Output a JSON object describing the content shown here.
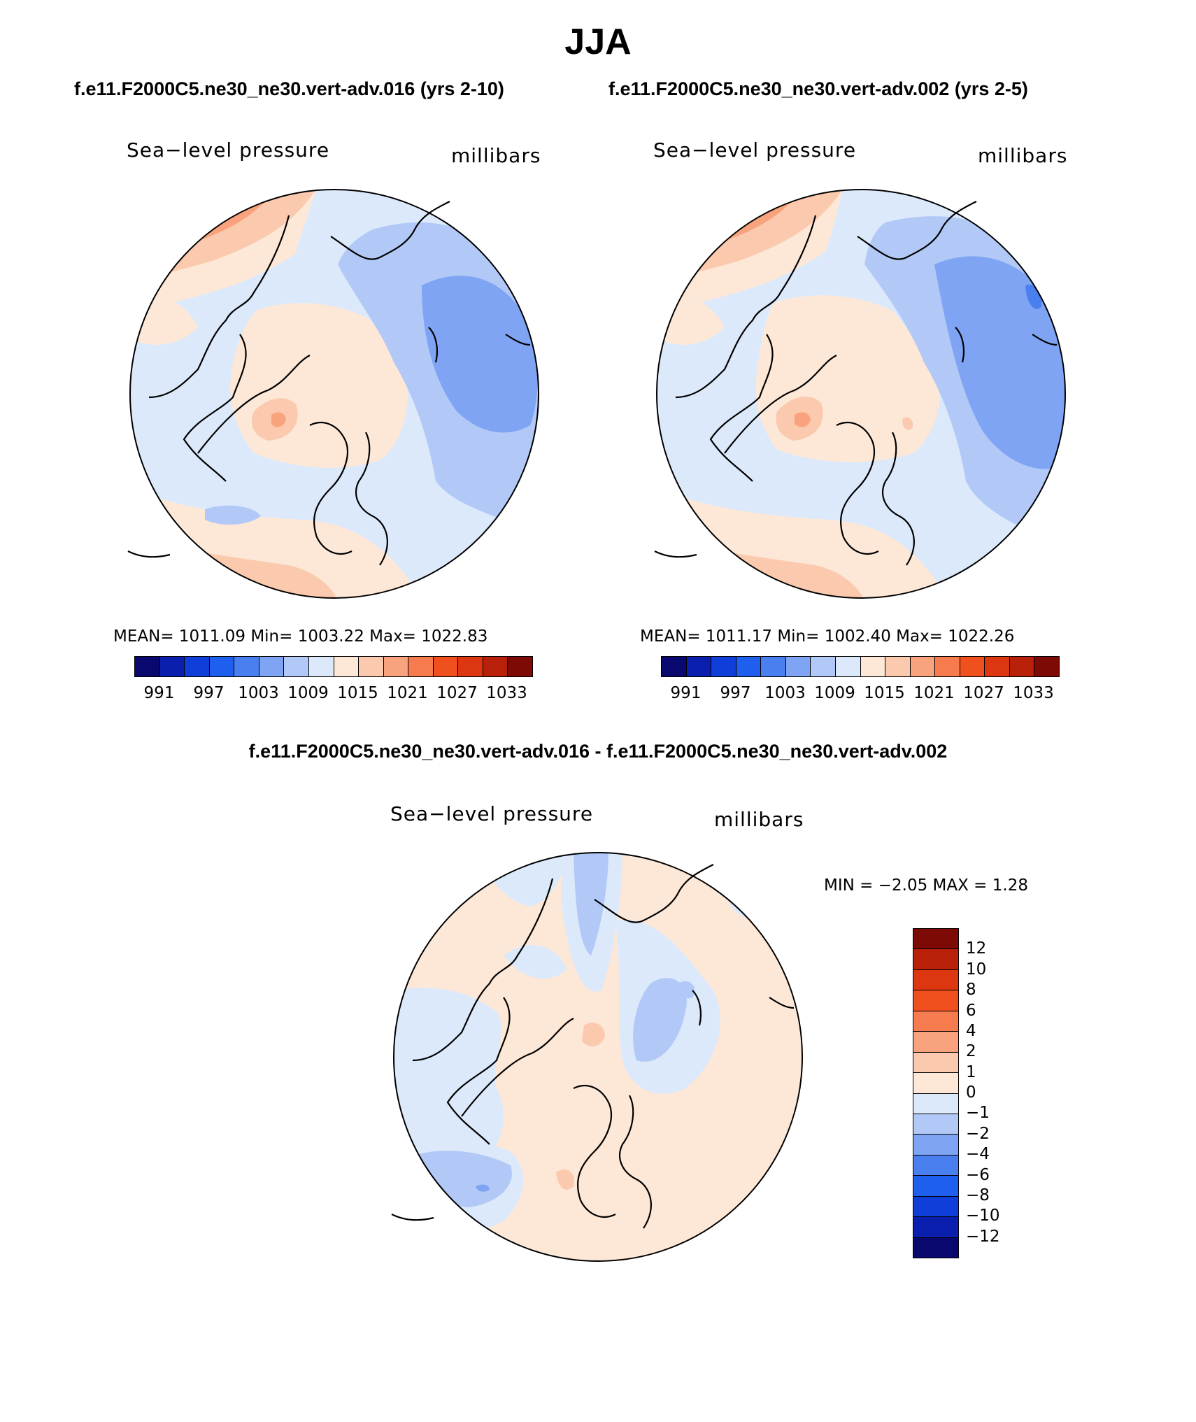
{
  "title": "JJA",
  "left_panel": {
    "case_title": "f.e11.F2000C5.ne30_ne30.vert-adv.016 (yrs 2-10)",
    "variable": "Sea−level pressure",
    "units": "millibars",
    "stats": "MEAN=  1011.09    Min=  1003.22    Max=  1022.83"
  },
  "right_panel": {
    "case_title": "f.e11.F2000C5.ne30_ne30.vert-adv.002 (yrs 2-5)",
    "variable": "Sea−level pressure",
    "units": "millibars",
    "stats": "MEAN=  1011.17    Min=  1002.40    Max=  1022.26"
  },
  "diff_panel": {
    "case_title": "f.e11.F2000C5.ne30_ne30.vert-adv.016 - f.e11.F2000C5.ne30_ne30.vert-adv.002",
    "variable": "Sea−level pressure",
    "units": "millibars",
    "minmax": "MIN =    −2.05 MAX =      1.28"
  },
  "abs_colorbar": {
    "colors": [
      "#08086e",
      "#0a1fae",
      "#0f3fd8",
      "#1f5fee",
      "#4a7ff0",
      "#7fa4f3",
      "#b2c9f7",
      "#dce9fb",
      "#fde8d8",
      "#fbc9ad",
      "#f9a37e",
      "#f67b4f",
      "#f0501e",
      "#dc3710",
      "#b8200a",
      "#7e0a06"
    ],
    "labels": [
      "991",
      "997",
      "1003",
      "1009",
      "1015",
      "1021",
      "1027",
      "1033"
    ]
  },
  "diff_colorbar": {
    "colors_top_to_bottom": [
      "#7e0a06",
      "#b8200a",
      "#dc3710",
      "#f0501e",
      "#f67b4f",
      "#f9a37e",
      "#fbc9ad",
      "#fde8d8",
      "#dce9fb",
      "#b2c9f7",
      "#7fa4f3",
      "#4a7ff0",
      "#1f5fee",
      "#0f3fd8",
      "#0a1fae",
      "#08086e"
    ],
    "labels": [
      "12",
      "10",
      "8",
      "6",
      "4",
      "2",
      "1",
      "0",
      "−1",
      "−2",
      "−4",
      "−6",
      "−8",
      "−10",
      "−12"
    ]
  }
}
